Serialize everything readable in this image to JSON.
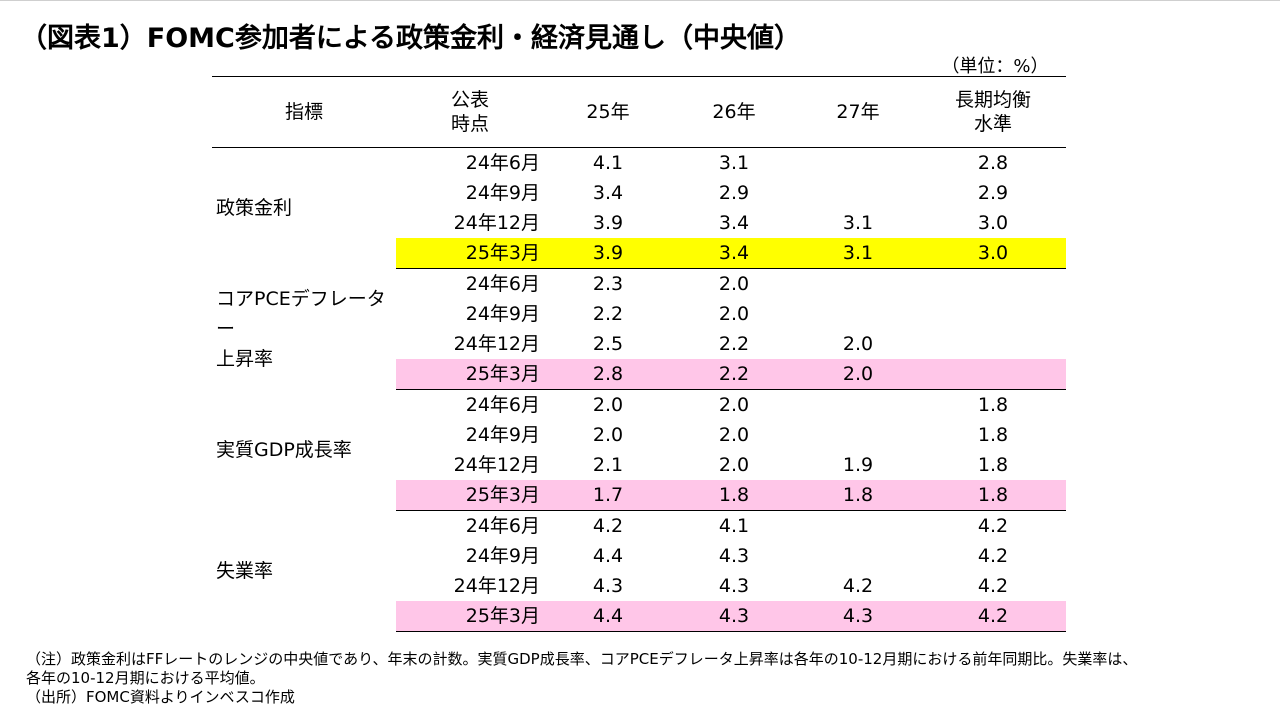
{
  "title": "（図表1）FOMC参加者による政策金利・経済見通し（中央値）",
  "unit": "（単位：%）",
  "colors": {
    "highlight_policy": "#ffff00",
    "highlight_other": "#ffc6e8"
  },
  "table": {
    "headers": {
      "indicator": "指標",
      "announce_line1": "公表",
      "announce_line2": "時点",
      "y25": "25年",
      "y26": "26年",
      "y27": "27年",
      "longrun_line1": "長期均衡",
      "longrun_line2": "水準"
    },
    "groups": [
      {
        "label": "政策金利",
        "rows": [
          {
            "date": "24年6月",
            "y25": "4.1",
            "y26": "3.1",
            "y27": "",
            "lr": "2.8"
          },
          {
            "date": "24年9月",
            "y25": "3.4",
            "y26": "2.9",
            "y27": "",
            "lr": "2.9"
          },
          {
            "date": "24年12月",
            "y25": "3.9",
            "y26": "3.4",
            "y27": "3.1",
            "lr": "3.0"
          },
          {
            "date": "25年3月",
            "y25": "3.9",
            "y26": "3.4",
            "y27": "3.1",
            "lr": "3.0"
          }
        ]
      },
      {
        "label_line1": "コアPCEデフレーター",
        "label_line2": "上昇率",
        "rows": [
          {
            "date": "24年6月",
            "y25": "2.3",
            "y26": "2.0",
            "y27": "",
            "lr": ""
          },
          {
            "date": "24年9月",
            "y25": "2.2",
            "y26": "2.0",
            "y27": "",
            "lr": ""
          },
          {
            "date": "24年12月",
            "y25": "2.5",
            "y26": "2.2",
            "y27": "2.0",
            "lr": ""
          },
          {
            "date": "25年3月",
            "y25": "2.8",
            "y26": "2.2",
            "y27": "2.0",
            "lr": ""
          }
        ]
      },
      {
        "label": "実質GDP成長率",
        "rows": [
          {
            "date": "24年6月",
            "y25": "2.0",
            "y26": "2.0",
            "y27": "",
            "lr": "1.8"
          },
          {
            "date": "24年9月",
            "y25": "2.0",
            "y26": "2.0",
            "y27": "",
            "lr": "1.8"
          },
          {
            "date": "24年12月",
            "y25": "2.1",
            "y26": "2.0",
            "y27": "1.9",
            "lr": "1.8"
          },
          {
            "date": "25年3月",
            "y25": "1.7",
            "y26": "1.8",
            "y27": "1.8",
            "lr": "1.8"
          }
        ]
      },
      {
        "label": "失業率",
        "rows": [
          {
            "date": "24年6月",
            "y25": "4.2",
            "y26": "4.1",
            "y27": "",
            "lr": "4.2"
          },
          {
            "date": "24年9月",
            "y25": "4.4",
            "y26": "4.3",
            "y27": "",
            "lr": "4.2"
          },
          {
            "date": "24年12月",
            "y25": "4.3",
            "y26": "4.3",
            "y27": "4.2",
            "lr": "4.2"
          },
          {
            "date": "25年3月",
            "y25": "4.4",
            "y26": "4.3",
            "y27": "4.3",
            "lr": "4.2"
          }
        ]
      }
    ]
  },
  "notes": {
    "note_line1": "（注）政策金利はFFレートのレンジの中央値であり、年末の計数。実質GDP成長率、コアPCEデフレータ上昇率は各年の10-12月期における前年同期比。失業率は、",
    "note_line2": "各年の10-12月期における平均値。",
    "source": "（出所）FOMC資料よりインベスコ作成"
  }
}
